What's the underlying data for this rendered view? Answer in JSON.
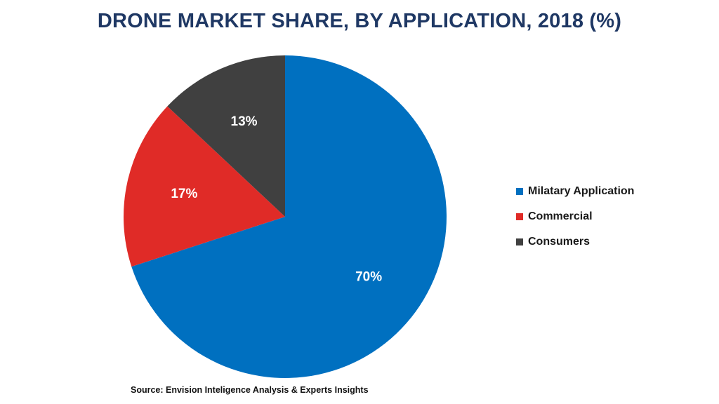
{
  "chart_data": {
    "type": "pie",
    "title": "DRONE MARKET SHARE, BY APPLICATION, 2018 (%)",
    "categories": [
      "Milatary Application",
      "Commercial",
      "Consumers"
    ],
    "values": [
      70,
      17,
      13
    ],
    "data_labels": [
      "70%",
      "17%",
      "13%"
    ],
    "colors": [
      "#0070c0",
      "#e02b27",
      "#404040"
    ],
    "legend": {
      "placement": "right",
      "entries": [
        "Milatary Application",
        "Commercial",
        "Consumers"
      ]
    }
  },
  "source": "Source: Envision Inteligence Analysis & Experts Insights"
}
